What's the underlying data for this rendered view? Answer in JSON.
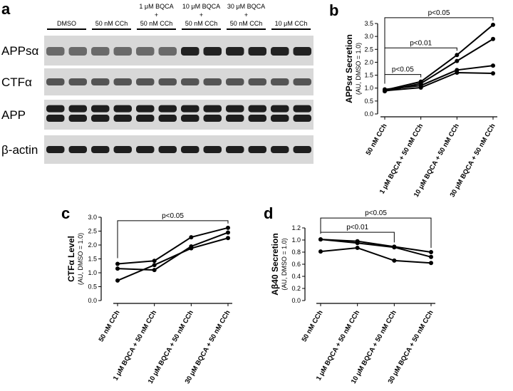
{
  "blot": {
    "panel_label": "a",
    "lanes": [
      [
        "DMSO"
      ],
      [
        "50 nM CCh"
      ],
      [
        "1 μM BQCA",
        "+",
        "50 nM CCh"
      ],
      [
        "10 μM BQCA",
        "+",
        "50 nM CCh"
      ],
      [
        "30 μM BQCA",
        "+",
        "50 nM CCh"
      ],
      [
        "10 μM CCh"
      ]
    ],
    "rows": [
      "APPsα",
      "CTFα",
      "APP",
      "β-actin"
    ]
  },
  "chart_data": [
    {
      "type": "line",
      "panel_label": "b",
      "ylabel": "APPsα Secretion",
      "ylabel_sub": "(AU, DMSO = 1.0)",
      "categories": [
        "50 nM CCh",
        "1 μM BQCA + 50 nM CCh",
        "10 μM BQCA + 50 nM CCh",
        "30 μM BQCA + 50 nM CCh"
      ],
      "series": [
        {
          "color": "#000000",
          "values": [
            0.92,
            1.25,
            2.28,
            3.45
          ]
        },
        {
          "color": "#000000",
          "values": [
            0.88,
            1.18,
            2.05,
            2.9
          ]
        },
        {
          "color": "#000000",
          "values": [
            0.95,
            1.1,
            1.7,
            1.87
          ]
        },
        {
          "color": "#000000",
          "values": [
            0.9,
            1.02,
            1.6,
            1.57
          ]
        }
      ],
      "ylim": [
        0,
        3.5
      ],
      "yticks": [
        {
          "value": 0,
          "label": "0.0"
        },
        0.5,
        {
          "value": 1,
          "label": "1.0"
        },
        1.5,
        {
          "value": 2,
          "label": "2.0"
        },
        2.5,
        {
          "value": 3,
          "label": "3.0"
        },
        3.5
      ],
      "annotations": [
        {
          "text": "p<0.05",
          "from": 0,
          "to": 1
        },
        {
          "text": "p<0.01",
          "from": 0,
          "to": 2
        },
        {
          "text": "p<0.05",
          "from": 0,
          "to": 3
        }
      ]
    },
    {
      "type": "line",
      "panel_label": "c",
      "ylabel": "CTFα Level",
      "ylabel_sub": "(AU, DMSO = 1.0)",
      "categories": [
        "50 nM CCh",
        "1 μM BQCA + 50 nM CCh",
        "10 μM BQCA + 50 nM CCh",
        "30 μM BQCA + 50 nM CCh"
      ],
      "series": [
        {
          "color": "#000000",
          "values": [
            1.32,
            1.43,
            2.28,
            2.62
          ]
        },
        {
          "color": "#000000",
          "values": [
            1.15,
            1.1,
            1.95,
            2.45
          ]
        },
        {
          "color": "#000000",
          "values": [
            0.72,
            1.28,
            1.88,
            2.25
          ]
        }
      ],
      "ylim": [
        0,
        3
      ],
      "yticks": [
        {
          "value": 0,
          "label": "0.0"
        },
        0.5,
        {
          "value": 1,
          "label": "1.0"
        },
        1.5,
        {
          "value": 2,
          "label": "2.0"
        },
        2.5,
        {
          "value": 3,
          "label": "3.0"
        }
      ],
      "annotations": [
        {
          "text": "p<0.05",
          "from": 0,
          "to": 3
        }
      ]
    },
    {
      "type": "line",
      "panel_label": "d",
      "ylabel": "Aβ40 Secretion",
      "ylabel_sub": "(AU, DMSO = 1.0)",
      "categories": [
        "50 nM CCh",
        "1 μM BQCA + 50 nM CCh",
        "10 μM BQCA + 50 nM CCh",
        "30 μM BQCA + 50 nM CCh"
      ],
      "series": [
        {
          "color": "#000000",
          "values": [
            1.01,
            0.98,
            0.89,
            0.8
          ]
        },
        {
          "color": "#000000",
          "values": [
            1.01,
            0.95,
            0.88,
            0.72
          ]
        },
        {
          "color": "#000000",
          "values": [
            0.81,
            0.87,
            0.66,
            0.62
          ]
        }
      ],
      "ylim": [
        0,
        1.2
      ],
      "yticks": [
        {
          "value": 0,
          "label": "0.0"
        },
        0.2,
        0.4,
        0.6,
        0.8,
        {
          "value": 1,
          "label": "1.0"
        },
        1.2
      ],
      "annotations": [
        {
          "text": "p<0.01",
          "from": 0,
          "to": 2
        },
        {
          "text": "p<0.05",
          "from": 0,
          "to": 3
        }
      ]
    }
  ]
}
